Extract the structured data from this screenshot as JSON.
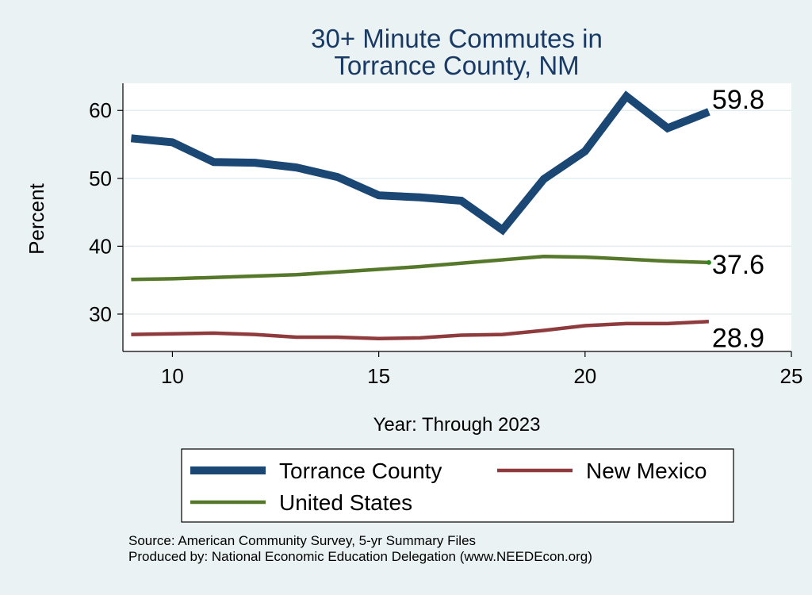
{
  "chart_data": {
    "type": "line",
    "title_lines": [
      "30+ Minute Commutes in",
      "Torrance County, NM"
    ],
    "xlabel": "Year: Through 2023",
    "ylabel": "Percent",
    "xlim": [
      8.8,
      25
    ],
    "ylim": [
      24.5,
      64
    ],
    "x_ticks": [
      10,
      15,
      20,
      25
    ],
    "y_ticks": [
      30,
      40,
      50,
      60
    ],
    "grid": true,
    "legend_position": "bottom",
    "x": [
      9,
      10,
      11,
      12,
      13,
      14,
      15,
      16,
      17,
      18,
      19,
      20,
      21,
      22,
      23
    ],
    "series": [
      {
        "name": "Torrance County",
        "color": "#1a4773",
        "values": [
          55.9,
          55.3,
          52.4,
          52.3,
          51.6,
          50.2,
          47.5,
          47.2,
          46.7,
          42.4,
          49.9,
          54.0,
          62.1,
          57.4,
          59.8
        ],
        "end_label": "59.8"
      },
      {
        "name": "New Mexico",
        "color": "#8f3a3d",
        "values": [
          27.0,
          27.1,
          27.2,
          27.0,
          26.6,
          26.6,
          26.4,
          26.5,
          26.9,
          27.0,
          27.6,
          28.3,
          28.6,
          28.6,
          28.9
        ],
        "end_label": "28.9"
      },
      {
        "name": "United States",
        "color": "#56782b",
        "values": [
          35.1,
          35.2,
          35.4,
          35.6,
          35.8,
          36.2,
          36.6,
          37.0,
          37.5,
          38.0,
          38.5,
          38.4,
          38.1,
          37.8,
          37.6
        ],
        "end_label": "37.6"
      }
    ]
  },
  "source_lines": [
    "Source: American Community Survey, 5-yr Summary Files",
    "Produced by: National Economic Education Delegation (www.NEEDEcon.org)"
  ]
}
